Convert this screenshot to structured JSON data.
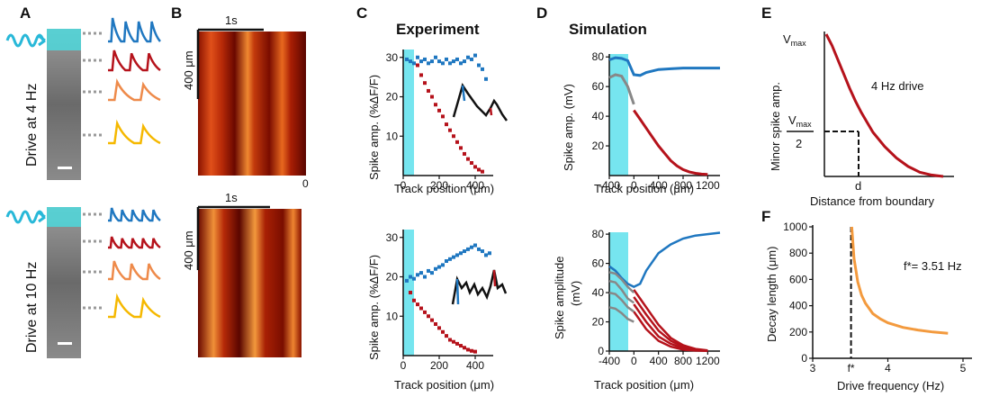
{
  "panels": {
    "A": {
      "label": "A",
      "top_drive": "Drive at  4 Hz",
      "bottom_drive": "Drive at 10 Hz",
      "trace_colors": [
        "#1f77c0",
        "#b5121b",
        "#ee8a4a",
        "#f5b800"
      ]
    },
    "B": {
      "label": "B",
      "time_scale": "1s",
      "space_scale": "400 μm",
      "stray_tick": "0"
    },
    "C": {
      "label": "C",
      "title": "Experiment",
      "top": {
        "ylabel": "Spike amp. (%ΔF/F)",
        "xlabel": "Track position (μm)",
        "yticks": [
          "10",
          "20",
          "30"
        ],
        "xticks": [
          "0",
          "200",
          "400"
        ]
      },
      "bottom": {
        "ylabel": "Spike amp. (%ΔF/F)",
        "xlabel": "Track position (μm)",
        "yticks": [
          "10",
          "20",
          "30"
        ],
        "xticks": [
          "0",
          "200",
          "400"
        ]
      }
    },
    "D": {
      "label": "D",
      "title": "Simulation",
      "top": {
        "ylabel": "Spike amp. (mV)",
        "xlabel": "Track position (μm)",
        "yticks": [
          "20",
          "40",
          "60",
          "80"
        ],
        "xticks": [
          "-400",
          "0",
          "400",
          "800",
          "1200"
        ]
      },
      "bottom": {
        "ylabel_line1": "Spike amplitude",
        "ylabel_line2": "(mV)",
        "xlabel": "Track position (μm)",
        "yticks": [
          "0",
          "20",
          "40",
          "60",
          "80"
        ],
        "xticks": [
          "-400",
          "0",
          "400",
          "800",
          "1200"
        ]
      }
    },
    "E": {
      "label": "E",
      "ylabel": "Minor spike amp.",
      "xlabel": "Distance from boundary",
      "vmax": "V",
      "vmax_sub": "max",
      "half_den": "2",
      "d_label": "d",
      "annotation": "4 Hz drive"
    },
    "F": {
      "label": "F",
      "ylabel": "Decay length  (μm)",
      "xlabel": "Drive frequency (Hz)",
      "annotation": "f*= 3.51 Hz",
      "fstar_label": "f*"
    }
  },
  "chart_data": [
    {
      "type": "scatter",
      "panel": "C-top",
      "xlabel": "Track position (μm)",
      "ylabel": "Spike amp. (%ΔF/F)",
      "xlim": [
        0,
        500
      ],
      "ylim": [
        0,
        32
      ],
      "series": [
        {
          "color": "#1f77c0",
          "points": [
            [
              20,
              29.5
            ],
            [
              40,
              29
            ],
            [
              60,
              28.5
            ],
            [
              80,
              30
            ],
            [
              100,
              29
            ],
            [
              120,
              29.5
            ],
            [
              140,
              28.5
            ],
            [
              160,
              29
            ],
            [
              180,
              30
            ],
            [
              200,
              29
            ],
            [
              220,
              28.5
            ],
            [
              240,
              29.5
            ],
            [
              260,
              28.5
            ],
            [
              280,
              29
            ],
            [
              300,
              29.5
            ],
            [
              320,
              28.5
            ],
            [
              340,
              29
            ],
            [
              360,
              30
            ],
            [
              380,
              29.5
            ],
            [
              400,
              30.5
            ],
            [
              420,
              28
            ],
            [
              440,
              27
            ],
            [
              460,
              24.5
            ]
          ]
        },
        {
          "color": "#b5121b",
          "points": [
            [
              80,
              28
            ],
            [
              100,
              25.5
            ],
            [
              120,
              23.5
            ],
            [
              140,
              21.5
            ],
            [
              160,
              20
            ],
            [
              180,
              18
            ],
            [
              200,
              16.5
            ],
            [
              220,
              15
            ],
            [
              240,
              13
            ],
            [
              260,
              11.5
            ],
            [
              280,
              10
            ],
            [
              300,
              8.5
            ],
            [
              320,
              7
            ],
            [
              340,
              5.5
            ],
            [
              360,
              4.2
            ],
            [
              380,
              3.2
            ],
            [
              400,
              2.2
            ],
            [
              420,
              1.5
            ],
            [
              440,
              1
            ]
          ]
        }
      ]
    },
    {
      "type": "scatter",
      "panel": "C-bottom",
      "xlabel": "Track position (μm)",
      "ylabel": "Spike amp. (%ΔF/F)",
      "xlim": [
        0,
        500
      ],
      "ylim": [
        0,
        32
      ],
      "series": [
        {
          "color": "#1f77c0",
          "points": [
            [
              20,
              19
            ],
            [
              40,
              20
            ],
            [
              60,
              19.5
            ],
            [
              80,
              20.5
            ],
            [
              100,
              21
            ],
            [
              120,
              20
            ],
            [
              140,
              21.5
            ],
            [
              160,
              21
            ],
            [
              180,
              22
            ],
            [
              200,
              22.5
            ],
            [
              220,
              23
            ],
            [
              240,
              24
            ],
            [
              260,
              24.5
            ],
            [
              280,
              25
            ],
            [
              300,
              25.5
            ],
            [
              320,
              26
            ],
            [
              340,
              26.5
            ],
            [
              360,
              27
            ],
            [
              380,
              27.5
            ],
            [
              400,
              28
            ],
            [
              420,
              27
            ],
            [
              440,
              26.5
            ],
            [
              460,
              25.5
            ],
            [
              480,
              26
            ]
          ]
        },
        {
          "color": "#b5121b",
          "points": [
            [
              40,
              16
            ],
            [
              60,
              14
            ],
            [
              80,
              13
            ],
            [
              100,
              12
            ],
            [
              120,
              11
            ],
            [
              140,
              10
            ],
            [
              160,
              9
            ],
            [
              180,
              8
            ],
            [
              200,
              7
            ],
            [
              220,
              6
            ],
            [
              240,
              5
            ],
            [
              260,
              4
            ],
            [
              280,
              3.5
            ],
            [
              300,
              3
            ],
            [
              320,
              2.5
            ],
            [
              340,
              2
            ],
            [
              360,
              1.5
            ],
            [
              380,
              1.2
            ],
            [
              400,
              1
            ]
          ]
        }
      ]
    },
    {
      "type": "line",
      "panel": "D-top",
      "xlabel": "Track position (μm)",
      "ylabel": "Spike amp. (mV)",
      "xlim": [
        -400,
        1400
      ],
      "ylim": [
        0,
        85
      ],
      "series": [
        {
          "color": "#1f77c0",
          "x": [
            -400,
            -300,
            -200,
            -100,
            0,
            100,
            200,
            400,
            600,
            800,
            1000,
            1200,
            1400
          ],
          "y": [
            78,
            79.5,
            79,
            77.5,
            68,
            67.5,
            69.5,
            71.5,
            72,
            72.5,
            72.5,
            72.5,
            72.5
          ]
        },
        {
          "color": "#b5121b",
          "x": [
            0,
            100,
            200,
            300,
            400,
            500,
            600,
            700,
            800,
            900,
            1000,
            1100,
            1200
          ],
          "y": [
            44,
            38,
            32,
            26,
            20,
            15,
            10,
            6.5,
            4,
            2.5,
            1.5,
            1,
            0.8
          ]
        },
        {
          "color": "#888888",
          "x": [
            -400,
            -300,
            -200,
            -100,
            0
          ],
          "y": [
            66,
            68,
            67,
            60,
            48
          ]
        }
      ]
    },
    {
      "type": "line",
      "panel": "D-bottom",
      "xlabel": "Track position (μm)",
      "ylabel": "Spike amplitude (mV)",
      "xlim": [
        -400,
        1400
      ],
      "ylim": [
        0,
        85
      ],
      "series": [
        {
          "color": "#1f77c0",
          "x": [
            -400,
            -300,
            -200,
            -100,
            0,
            100,
            200,
            400,
            600,
            800,
            1000,
            1200,
            1400
          ],
          "y": [
            58,
            55,
            50,
            46,
            44,
            46,
            55,
            67,
            73,
            77,
            79,
            80,
            81
          ]
        },
        {
          "color": "#b5121b",
          "x": [
            0,
            100,
            200,
            400,
            600,
            800,
            1000,
            1200
          ],
          "y": [
            42,
            36,
            30,
            18,
            9,
            4,
            1.5,
            0.5
          ]
        },
        {
          "color": "#b5121b",
          "x": [
            0,
            100,
            200,
            400,
            600,
            800,
            1000,
            1200
          ],
          "y": [
            37,
            31,
            25,
            14,
            7,
            3,
            1,
            0.3
          ]
        },
        {
          "color": "#b5121b",
          "x": [
            0,
            100,
            200,
            400,
            600,
            800,
            1000,
            1200
          ],
          "y": [
            32,
            26,
            20,
            10,
            5,
            2,
            0.8,
            0.2
          ]
        },
        {
          "color": "#b5121b",
          "x": [
            0,
            100,
            200,
            400,
            600,
            800,
            1000,
            1200
          ],
          "y": [
            27,
            21,
            15,
            7,
            3,
            1,
            0.4,
            0.1
          ]
        },
        {
          "color": "#888888",
          "x": [
            -400,
            -300,
            -200,
            -100,
            0
          ],
          "y": [
            54,
            53,
            49,
            44,
            40
          ]
        },
        {
          "color": "#888888",
          "x": [
            -400,
            -300,
            -200,
            -100,
            0
          ],
          "y": [
            48,
            47,
            42,
            36,
            33
          ]
        },
        {
          "color": "#888888",
          "x": [
            -400,
            -300,
            -200,
            -100,
            0
          ],
          "y": [
            40,
            39,
            35,
            30,
            27
          ]
        },
        {
          "color": "#888888",
          "x": [
            -400,
            -300,
            -200,
            -100,
            0
          ],
          "y": [
            30,
            29,
            26,
            22,
            20
          ]
        }
      ]
    },
    {
      "type": "line",
      "panel": "E",
      "xlabel": "Distance from boundary",
      "ylabel": "Minor spike amp.",
      "xlim": [
        0,
        1
      ],
      "ylim": [
        0,
        1
      ],
      "series": [
        {
          "color": "#b5121b",
          "x": [
            0,
            0.05,
            0.1,
            0.15,
            0.2,
            0.25,
            0.3,
            0.35,
            0.4,
            0.5,
            0.6,
            0.7,
            0.8,
            0.9,
            1.0
          ],
          "y": [
            1.0,
            0.92,
            0.82,
            0.72,
            0.62,
            0.53,
            0.45,
            0.38,
            0.31,
            0.21,
            0.13,
            0.07,
            0.03,
            0.01,
            0.0
          ]
        }
      ]
    },
    {
      "type": "line",
      "panel": "F",
      "xlabel": "Drive frequency (Hz)",
      "ylabel": "Decay length  (μm)",
      "xticks": [
        3,
        4,
        5
      ],
      "yticks": [
        0,
        200,
        400,
        600,
        800,
        1000
      ],
      "xlim": [
        3,
        5
      ],
      "ylim": [
        0,
        1000
      ],
      "series": [
        {
          "color": "#f39a3e",
          "x": [
            3.52,
            3.55,
            3.6,
            3.65,
            3.7,
            3.8,
            3.9,
            4.0,
            4.2,
            4.4,
            4.6,
            4.8
          ],
          "y": [
            1000,
            760,
            580,
            480,
            420,
            340,
            300,
            270,
            235,
            215,
            200,
            190
          ]
        }
      ]
    }
  ]
}
